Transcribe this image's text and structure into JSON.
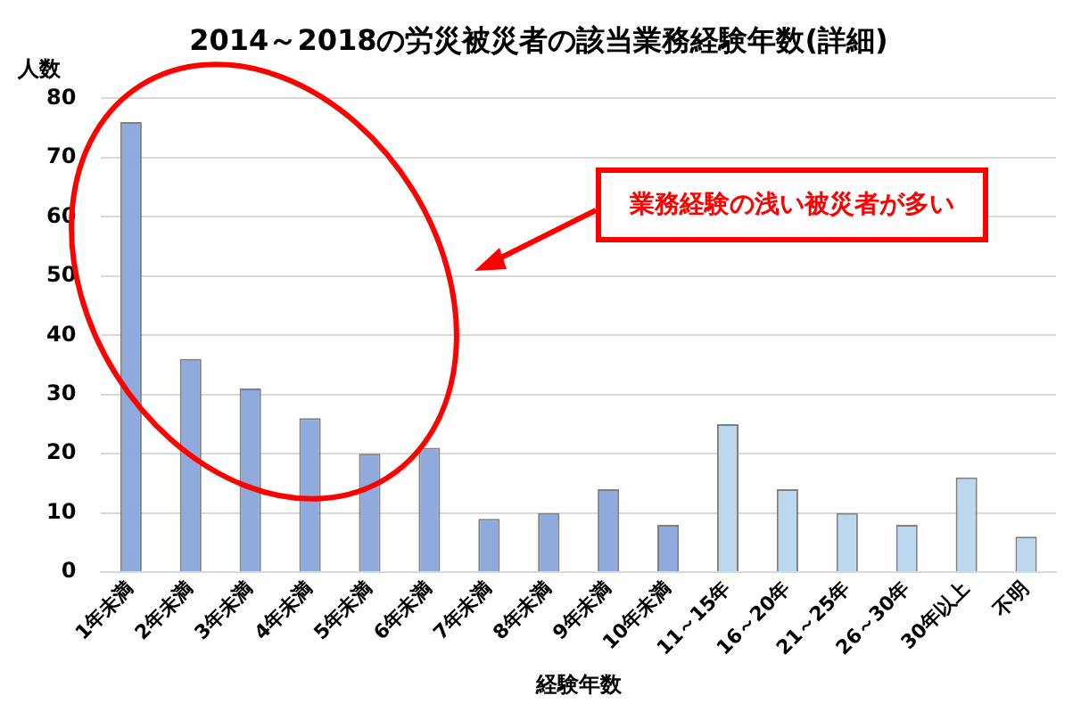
{
  "chart_data": {
    "type": "bar",
    "title": "2014～2018の労災被災者の該当業務経験年数(詳細)",
    "xlabel": "経験年数",
    "ylabel": "人数",
    "categories": [
      "1年未満",
      "2年未満",
      "3年未満",
      "4年未満",
      "5年未満",
      "6年未満",
      "7年未満",
      "8年未満",
      "9年未満",
      "10年未満",
      "11～15年",
      "16～20年",
      "21～25年",
      "26～30年",
      "30年以上",
      "不明"
    ],
    "values": [
      76,
      36,
      31,
      26,
      20,
      21,
      9,
      10,
      14,
      8,
      25,
      14,
      10,
      8,
      16,
      6
    ],
    "colors": [
      "#8faadc",
      "#8faadc",
      "#8faadc",
      "#8faadc",
      "#8faadc",
      "#8faadc",
      "#8faadc",
      "#8faadc",
      "#8faadc",
      "#8faadc",
      "#bdd7ee",
      "#bdd7ee",
      "#bdd7ee",
      "#bdd7ee",
      "#bdd7ee",
      "#bdd7ee"
    ],
    "ylim": [
      0,
      80
    ],
    "yticks": [
      0,
      10,
      20,
      30,
      40,
      50,
      60,
      70,
      80
    ],
    "grid": "y",
    "legend": false,
    "annotations": [
      "業務経験の浅い被災者が多い"
    ]
  }
}
